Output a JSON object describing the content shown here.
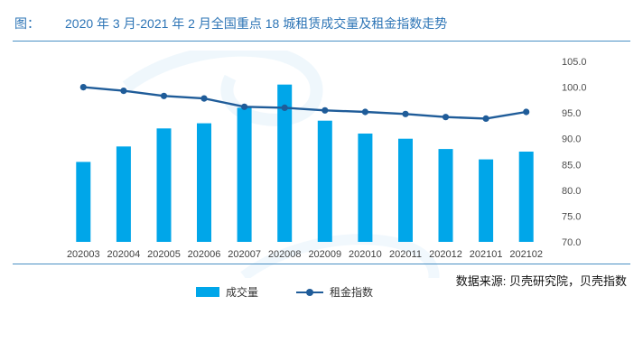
{
  "header": {
    "prefix": "图：",
    "title": "2020 年 3 月-2021 年 2 月全国重点 18 城租赁成交量及租金指数走势"
  },
  "footer": {
    "source": "数据来源: 贝壳研究院，贝壳指数"
  },
  "colors": {
    "bar": "#00A6E9",
    "line": "#1F5C99",
    "accent": "#2E75B6",
    "watermark": "#DCEEF9"
  },
  "chart_data": {
    "type": "combo",
    "title": "2020 年 3 月-2021 年 2 月全国重点 18 城租赁成交量及租金指数走势",
    "categories": [
      "202003",
      "202004",
      "202005",
      "202006",
      "202007",
      "202008",
      "202009",
      "202010",
      "202011",
      "202012",
      "202101",
      "202102"
    ],
    "series": [
      {
        "name": "成交量",
        "type": "bar",
        "values": [
          85.5,
          88.5,
          92.0,
          93.0,
          96.0,
          100.5,
          93.5,
          91.0,
          90.0,
          88.0,
          86.0,
          87.5
        ]
      },
      {
        "name": "租金指数",
        "type": "line",
        "values": [
          100.0,
          99.3,
          98.3,
          97.8,
          96.2,
          96.0,
          95.5,
          95.2,
          94.8,
          94.2,
          93.9,
          95.2
        ]
      }
    ],
    "ylim": [
      70,
      105
    ],
    "yticks": [
      70,
      75,
      80,
      85,
      90,
      95,
      100,
      105
    ],
    "y_axis_position": "right",
    "grid": false,
    "legend_position": "bottom",
    "xlabel": "",
    "ylabel": ""
  }
}
